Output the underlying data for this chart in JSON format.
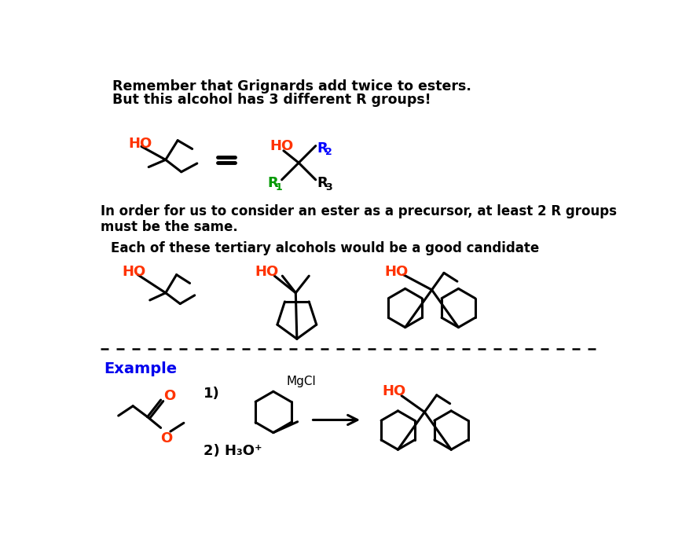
{
  "title_line1": "Remember that Grignards add twice to esters.",
  "title_line2": "But this alcohol has 3 different R groups!",
  "text_body": "In order for us to consider an ester as a precursor, at least 2 R groups\nmust be the same.",
  "text_candidate": "Each of these tertiary alcohols would be a good candidate",
  "text_example": "Example",
  "text_mgcl": "MgCl",
  "text_step1": "1)",
  "text_step2": "2) H₃O⁺",
  "ho_color": "#ff3300",
  "r1_color": "#009900",
  "r2_color": "#0000ff",
  "r3_color": "#000000",
  "example_color": "#0000ee",
  "black": "#000000",
  "bg_color": "#ffffff"
}
